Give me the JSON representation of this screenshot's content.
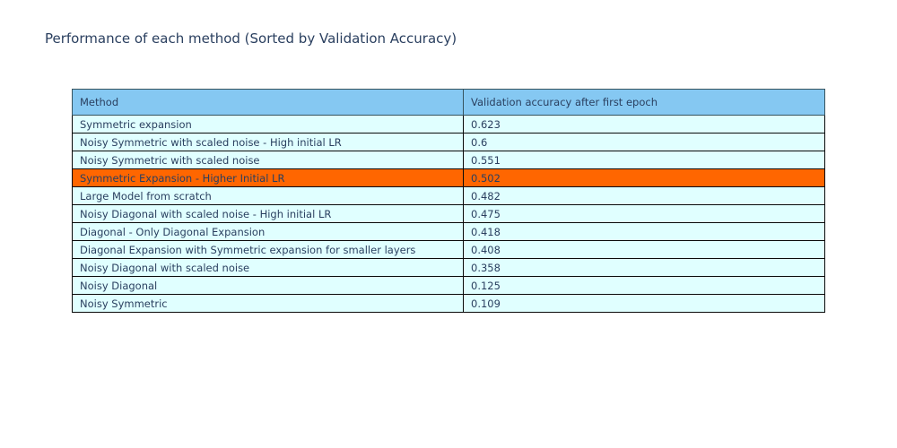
{
  "page": {
    "title": "Performance of each method (Sorted by Validation Accuracy)"
  },
  "chart_data": {
    "type": "table",
    "title": "Performance of each method (Sorted by Validation Accuracy)",
    "columns": [
      "Method",
      "Validation accuracy after first epoch"
    ],
    "rows": [
      {
        "method": "Symmetric expansion",
        "value": "0.623"
      },
      {
        "method": "Noisy Symmetric with scaled noise - High initial LR",
        "value": "0.6"
      },
      {
        "method": "Noisy Symmetric with scaled noise",
        "value": "0.551"
      },
      {
        "method": "Symmetric Expansion - Higher Initial LR",
        "value": "0.502"
      },
      {
        "method": "Large Model from scratch",
        "value": "0.482"
      },
      {
        "method": "Noisy Diagonal with scaled noise - High initial LR",
        "value": "0.475"
      },
      {
        "method": "Diagonal - Only Diagonal Expansion",
        "value": "0.418"
      },
      {
        "method": "Diagonal Expansion with Symmetric expansion for smaller layers",
        "value": "0.408"
      },
      {
        "method": "Noisy Diagonal with scaled noise",
        "value": "0.358"
      },
      {
        "method": "Noisy Diagonal",
        "value": "0.125"
      },
      {
        "method": "Noisy Symmetric",
        "value": "0.109"
      }
    ],
    "highlighted_row_index": 3,
    "highlighted_row_method": "Symmetric Expansion - Higher Initial LR",
    "sort": "descending by validation accuracy",
    "colors": {
      "header_bg": "#85c8f2",
      "row_bg": "#e0ffff",
      "highlight_bg": "#ff6600",
      "text": "#2a3f5f",
      "header_border": "#37535e",
      "cell_border": "#0a0a0a"
    }
  }
}
